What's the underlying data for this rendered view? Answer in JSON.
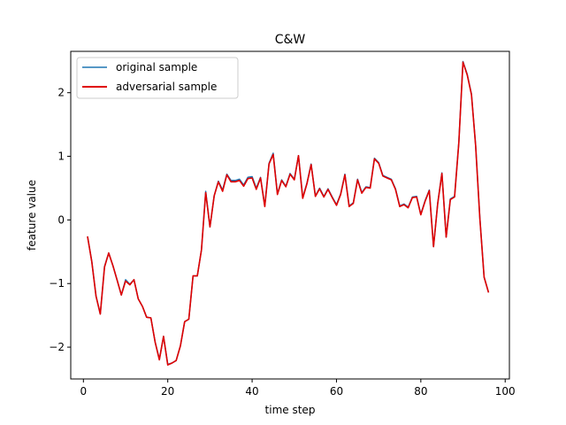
{
  "chart_data": {
    "type": "line",
    "title": "C&W",
    "xlabel": "time step",
    "ylabel": "feature value",
    "xlim": [
      -3,
      101
    ],
    "ylim": [
      -2.5,
      2.65
    ],
    "xticks": [
      0,
      20,
      40,
      60,
      80,
      100
    ],
    "yticks": [
      -2,
      -1,
      0,
      1,
      2
    ],
    "xtick_labels": [
      "0",
      "20",
      "40",
      "60",
      "80",
      "100"
    ],
    "ytick_labels": [
      "−2",
      "−1",
      "0",
      "1",
      "2"
    ],
    "grid": false,
    "legend": {
      "position": "upper left"
    },
    "x": [
      1,
      2,
      3,
      4,
      5,
      6,
      7,
      8,
      9,
      10,
      11,
      12,
      13,
      14,
      15,
      16,
      17,
      18,
      19,
      20,
      21,
      22,
      23,
      24,
      25,
      26,
      27,
      28,
      29,
      30,
      31,
      32,
      33,
      34,
      35,
      36,
      37,
      38,
      39,
      40,
      41,
      42,
      43,
      44,
      45,
      46,
      47,
      48,
      49,
      50,
      51,
      52,
      53,
      54,
      55,
      56,
      57,
      58,
      59,
      60,
      61,
      62,
      63,
      64,
      65,
      66,
      67,
      68,
      69,
      70,
      71,
      72,
      73,
      74,
      75,
      76,
      77,
      78,
      79,
      80,
      81,
      82,
      83,
      84,
      85,
      86,
      87,
      88,
      89,
      90,
      91,
      92,
      93,
      94,
      95,
      96
    ],
    "series": [
      {
        "name": "original sample",
        "color": "#1f77b4",
        "values": [
          -0.27,
          -0.65,
          -1.2,
          -1.48,
          -0.73,
          -0.52,
          -0.72,
          -0.95,
          -1.18,
          -0.94,
          -1.01,
          -0.94,
          -1.24,
          -1.36,
          -1.53,
          -1.54,
          -1.92,
          -2.19,
          -1.83,
          -2.27,
          -2.25,
          -2.21,
          -1.98,
          -1.6,
          -1.56,
          -0.88,
          -0.88,
          -0.47,
          0.45,
          -0.11,
          0.38,
          0.61,
          0.47,
          0.72,
          0.62,
          0.62,
          0.64,
          0.55,
          0.67,
          0.68,
          0.5,
          0.67,
          0.22,
          0.89,
          1.05,
          0.41,
          0.63,
          0.53,
          0.73,
          0.64,
          1.01,
          0.35,
          0.58,
          0.88,
          0.38,
          0.5,
          0.37,
          0.49,
          0.36,
          0.24,
          0.41,
          0.72,
          0.22,
          0.27,
          0.64,
          0.43,
          0.52,
          0.51,
          0.97,
          0.9,
          0.7,
          0.67,
          0.64,
          0.49,
          0.22,
          0.25,
          0.2,
          0.36,
          0.37,
          0.09,
          0.3,
          0.47,
          -0.42,
          0.26,
          0.74,
          -0.27,
          0.33,
          0.37,
          1.22,
          2.49,
          2.29,
          1.98,
          1.18,
          0.03,
          -0.9,
          -1.13
        ]
      },
      {
        "name": "adversarial sample",
        "color": "#e00000",
        "values": [
          -0.27,
          -0.66,
          -1.2,
          -1.48,
          -0.74,
          -0.52,
          -0.72,
          -0.95,
          -1.18,
          -0.96,
          -1.02,
          -0.94,
          -1.24,
          -1.36,
          -1.53,
          -1.54,
          -1.92,
          -2.2,
          -1.83,
          -2.28,
          -2.25,
          -2.21,
          -1.98,
          -1.6,
          -1.56,
          -0.88,
          -0.88,
          -0.47,
          0.43,
          -0.11,
          0.38,
          0.6,
          0.45,
          0.71,
          0.6,
          0.6,
          0.62,
          0.53,
          0.65,
          0.66,
          0.48,
          0.66,
          0.21,
          0.88,
          1.03,
          0.4,
          0.62,
          0.52,
          0.72,
          0.63,
          1.01,
          0.34,
          0.57,
          0.87,
          0.37,
          0.49,
          0.36,
          0.48,
          0.35,
          0.23,
          0.4,
          0.71,
          0.21,
          0.26,
          0.63,
          0.42,
          0.51,
          0.5,
          0.96,
          0.89,
          0.69,
          0.66,
          0.63,
          0.48,
          0.21,
          0.24,
          0.19,
          0.35,
          0.36,
          0.08,
          0.29,
          0.46,
          -0.42,
          0.25,
          0.73,
          -0.27,
          0.32,
          0.36,
          1.21,
          2.48,
          2.28,
          1.97,
          1.17,
          0.02,
          -0.9,
          -1.13
        ]
      }
    ]
  }
}
